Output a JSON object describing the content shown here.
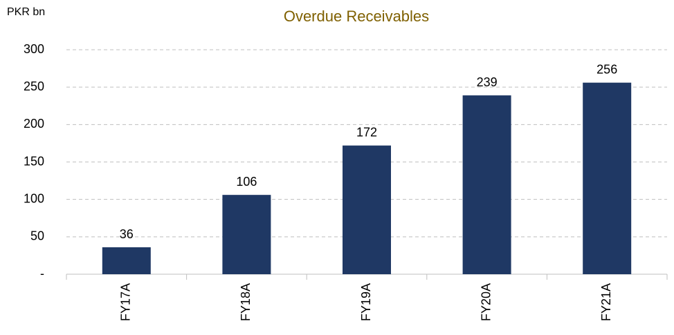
{
  "chart_data": {
    "type": "bar",
    "title": "Overdue Receivables",
    "y_label": "PKR bn",
    "categories": [
      "FY17A",
      "FY18A",
      "FY19A",
      "FY20A",
      "FY21A"
    ],
    "values": [
      36,
      106,
      172,
      239,
      256
    ],
    "color": "#1f3864",
    "ylim": [
      0,
      300
    ],
    "yticks": [
      {
        "value": 0,
        "label": "-"
      },
      50,
      100,
      150,
      200,
      250,
      300
    ],
    "grid": true
  }
}
